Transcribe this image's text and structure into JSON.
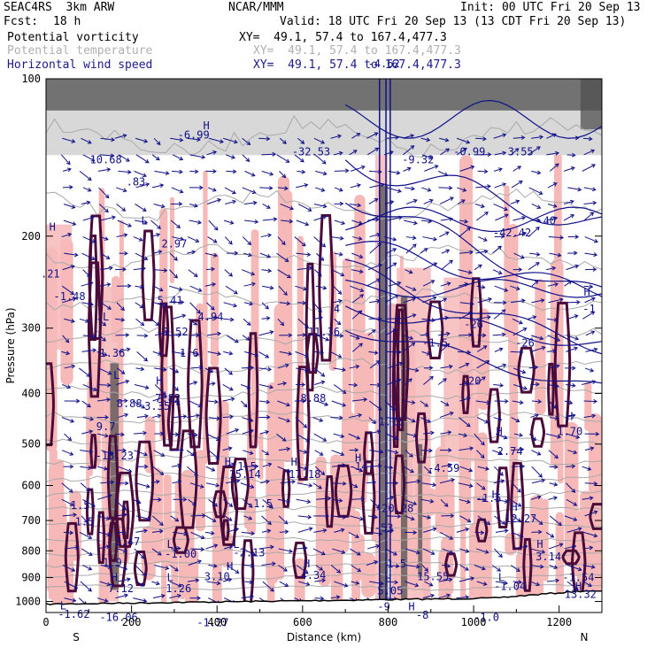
{
  "header": {
    "model": "SEAC4RS  3km ARW",
    "org": "NCAR/MMM",
    "init": "Init: 00 UTC Fri 20 Sep 13",
    "fcst_label": "Fcst:",
    "fcst_value": "18 h",
    "valid": "Valid: 18 UTC Fri 20 Sep 13 (13 CDT Fri 20 Sep 13)"
  },
  "legend": [
    {
      "field": "Potential vorticity",
      "xy": "XY=  49.1, 57.4 to 167.4,477.3",
      "color": "#000000"
    },
    {
      "field": "Potential temperature",
      "xy": "XY=  49.1, 57.4 to 167.4,477.3",
      "color": "#b0b0b0"
    },
    {
      "field": "Horizontal wind speed",
      "xy": "XY=  49.1, 57.4 to 167.4,477.3",
      "color": "#1a1a8c"
    }
  ],
  "colors": {
    "pv_positive": "#f7b8b8",
    "pv_contour": "#4a0a3a",
    "wind": "#10108a",
    "theta": "#a9a9a9",
    "terrain": "#000000",
    "shade_dark": "#505050"
  },
  "chart_data": {
    "type": "heatmap",
    "xlabel": "Distance (km)",
    "ylabel": "Pressure (hPa)",
    "xlim": [
      0,
      1300
    ],
    "ylim": [
      1050,
      100
    ],
    "y_scale": "log",
    "xticks": [
      0,
      200,
      400,
      600,
      800,
      1000,
      1200
    ],
    "yticks": [
      100,
      200,
      300,
      400,
      500,
      600,
      700,
      800,
      900,
      1000
    ],
    "end_labels": {
      "left": "S",
      "right": "N"
    },
    "annotations": [
      {
        "text": "H",
        "x": 15,
        "p": 195
      },
      {
        "text": ".21",
        "x": 10,
        "p": 240
      },
      {
        "text": "-1.48",
        "x": 55,
        "p": 265
      },
      {
        "text": "10.68",
        "x": 140,
        "p": 145
      },
      {
        "text": ".83",
        "x": 210,
        "p": 160
      },
      {
        "text": "L",
        "x": 140,
        "p": 290
      },
      {
        "text": "1.36",
        "x": 155,
        "p": 340
      },
      {
        "text": "L",
        "x": 230,
        "p": 190
      },
      {
        "text": "2.97",
        "x": 300,
        "p": 210
      },
      {
        "text": "5.41",
        "x": 290,
        "p": 270
      },
      {
        "text": "-3.52",
        "x": 295,
        "p": 310
      },
      {
        "text": "4.94",
        "x": 385,
        "p": 290
      },
      {
        "text": "-6.99",
        "x": 345,
        "p": 130
      },
      {
        "text": "H",
        "x": 375,
        "p": 125
      },
      {
        "text": "L",
        "x": 165,
        "p": 375
      },
      {
        "text": "8.88",
        "x": 195,
        "p": 425
      },
      {
        "text": "3.35",
        "x": 260,
        "p": 430
      },
      {
        "text": "9.7",
        "x": 140,
        "p": 470
      },
      {
        "text": "-18.23",
        "x": 160,
        "p": 535
      },
      {
        "text": "H",
        "x": 265,
        "p": 385
      },
      {
        "text": "7.82",
        "x": 285,
        "p": 415
      },
      {
        "text": "1.6",
        "x": 335,
        "p": 340
      },
      {
        "text": "-32.53",
        "x": 620,
        "p": 140
      },
      {
        "text": "11.36",
        "x": 650,
        "p": 310
      },
      {
        "text": "8.88",
        "x": 625,
        "p": 415
      },
      {
        "text": "4",
        "x": 680,
        "p": 280
      },
      {
        "text": "-4.62",
        "x": 790,
        "p": 95
      },
      {
        "text": "-9.32",
        "x": 870,
        "p": 145
      },
      {
        "text": "-0.99",
        "x": 990,
        "p": 140
      },
      {
        "text": "3.55",
        "x": 1110,
        "p": 140
      },
      {
        "text": "-42.42",
        "x": 1090,
        "p": 200
      },
      {
        "text": "-40",
        "x": 1170,
        "p": 190
      },
      {
        "text": "-26",
        "x": 1000,
        "p": 300
      },
      {
        "text": "-26",
        "x": 1120,
        "p": 325
      },
      {
        "text": "-20",
        "x": 995,
        "p": 385
      },
      {
        "text": "-1.5",
        "x": 910,
        "p": 325
      },
      {
        "text": "H",
        "x": 1265,
        "p": 260
      },
      {
        "text": "-1",
        "x": 1270,
        "p": 280
      },
      {
        "text": "H",
        "x": 1225,
        "p": 450
      },
      {
        "text": "1.70",
        "x": 1225,
        "p": 480
      },
      {
        "text": "H",
        "x": 1060,
        "p": 480
      },
      {
        "text": "2.74",
        "x": 1085,
        "p": 525
      },
      {
        "text": "-1.15",
        "x": 800,
        "p": 460
      },
      {
        "text": "H",
        "x": 730,
        "p": 540
      },
      {
        "text": "-14",
        "x": 730,
        "p": 560
      },
      {
        "text": "-4.59",
        "x": 930,
        "p": 565
      },
      {
        "text": "H",
        "x": 425,
        "p": 550
      },
      {
        "text": "15.14",
        "x": 465,
        "p": 580
      },
      {
        "text": "1.5",
        "x": 470,
        "p": 560
      },
      {
        "text": "H",
        "x": 580,
        "p": 550
      },
      {
        "text": "17.18",
        "x": 605,
        "p": 580
      },
      {
        "text": "-1.5",
        "x": 500,
        "p": 660
      },
      {
        "text": "-1.5",
        "x": 1035,
        "p": 645
      },
      {
        "text": "H",
        "x": 1050,
        "p": 635
      },
      {
        "text": "H",
        "x": 1095,
        "p": 670
      },
      {
        "text": "12.27",
        "x": 1110,
        "p": 705
      },
      {
        "text": "-20.28",
        "x": 815,
        "p": 675
      },
      {
        "text": "-53",
        "x": 790,
        "p": 735
      },
      {
        "text": "1.5",
        "x": 80,
        "p": 665
      },
      {
        "text": "1.5",
        "x": 90,
        "p": 715
      },
      {
        "text": "2.47",
        "x": 190,
        "p": 780
      },
      {
        "text": "L",
        "x": 290,
        "p": 790
      },
      {
        "text": "-1.00",
        "x": 315,
        "p": 825
      },
      {
        "text": "L",
        "x": 445,
        "p": 790
      },
      {
        "text": "-2.13",
        "x": 475,
        "p": 820
      },
      {
        "text": "H",
        "x": 1155,
        "p": 790
      },
      {
        "text": "3.14",
        "x": 1175,
        "p": 835
      },
      {
        "text": "1.9",
        "x": 155,
        "p": 855
      },
      {
        "text": "H",
        "x": 430,
        "p": 870
      },
      {
        "text": "3.10",
        "x": 400,
        "p": 910
      },
      {
        "text": "H",
        "x": 610,
        "p": 860
      },
      {
        "text": "4.34",
        "x": 625,
        "p": 905
      },
      {
        "text": "H",
        "x": 800,
        "p": 920
      },
      {
        "text": "5.05",
        "x": 805,
        "p": 970
      },
      {
        "text": "1.5",
        "x": 820,
        "p": 860
      },
      {
        "text": "15.55",
        "x": 905,
        "p": 910
      },
      {
        "text": "H",
        "x": 160,
        "p": 915
      },
      {
        "text": "7.12",
        "x": 175,
        "p": 960
      },
      {
        "text": "L",
        "x": 290,
        "p": 915
      },
      {
        "text": "1.26",
        "x": 310,
        "p": 960
      },
      {
        "text": "L",
        "x": 1065,
        "p": 915
      },
      {
        "text": "-1.04",
        "x": 1085,
        "p": 950
      },
      {
        "text": "-1.54",
        "x": 1245,
        "p": 915
      },
      {
        "text": "H",
        "x": 1245,
        "p": 950
      },
      {
        "text": "13.32",
        "x": 1250,
        "p": 985
      },
      {
        "text": "L",
        "x": 40,
        "p": 1035
      },
      {
        "text": "-1.62",
        "x": 65,
        "p": 1075
      },
      {
        "text": "-16.06",
        "x": 170,
        "p": 1090
      },
      {
        "text": "-1.27",
        "x": 390,
        "p": 1115
      },
      {
        "text": "-9",
        "x": 790,
        "p": 1040
      },
      {
        "text": "H",
        "x": 855,
        "p": 1040
      },
      {
        "text": "-8",
        "x": 880,
        "p": 1080
      },
      {
        "text": "-1.0",
        "x": 1030,
        "p": 1090
      }
    ]
  }
}
